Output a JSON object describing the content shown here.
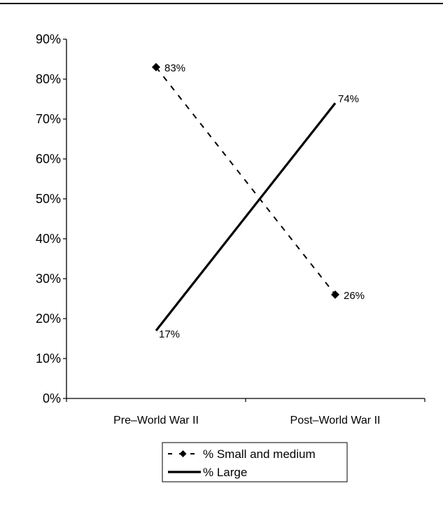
{
  "chart_data": {
    "type": "line",
    "title": "",
    "xlabel": "",
    "ylabel": "",
    "categories": [
      "Pre–World War II",
      "Post–World War II"
    ],
    "ylim": [
      0,
      90
    ],
    "yticks": [
      "0%",
      "10%",
      "20%",
      "30%",
      "40%",
      "50%",
      "60%",
      "70%",
      "80%",
      "90%"
    ],
    "grid": false,
    "legend_position": "bottom-center",
    "series": [
      {
        "name": "% Small and medium",
        "values": [
          83,
          26
        ],
        "labels": [
          "83%",
          "26%"
        ],
        "line_style": "dashed",
        "marker": "diamond",
        "color": "#000000"
      },
      {
        "name": "% Large",
        "values": [
          17,
          74
        ],
        "labels": [
          "17%",
          "74%"
        ],
        "line_style": "solid",
        "marker": "none",
        "color": "#000000"
      }
    ]
  }
}
